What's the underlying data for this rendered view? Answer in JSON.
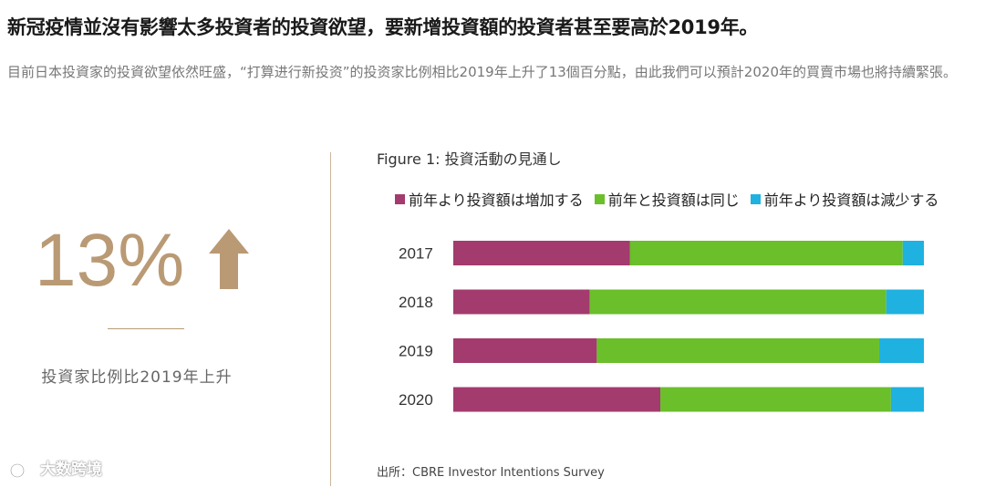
{
  "headline": "新冠疫情並沒有影響太多投資者的投資欲望，要新增投資額的投資者甚至要高於2019年。",
  "intro": "目前日本投資家的投資欲望依然旺盛，“打算进行新投资”的投资家比例相比2019年上升了13個百分點，由此我們可以預計2020年的買賣市場也將持續緊張。",
  "stat": {
    "value": "13%",
    "caption": "投資家比例比2019年上升",
    "color": "#b99a74",
    "icon": "up-arrow-icon"
  },
  "watermark": "大数跨境",
  "chart_data": {
    "type": "bar",
    "orientation": "horizontal",
    "stacked": true,
    "normalized_to": 100,
    "title": "Figure 1: 投資活動の見通し",
    "categories": [
      "2017",
      "2018",
      "2019",
      "2020"
    ],
    "series": [
      {
        "name": "前年より投資額は増加する",
        "color": "#a33b6e",
        "values": [
          37.5,
          29,
          30.5,
          44
        ]
      },
      {
        "name": "前年と投資額は同じ",
        "color": "#6abf2a",
        "values": [
          58,
          63,
          60,
          49
        ]
      },
      {
        "name": "前年より投資額は減少する",
        "color": "#1fb1e0",
        "values": [
          4.5,
          8,
          9.5,
          7
        ]
      }
    ],
    "xlim": [
      0,
      100
    ],
    "grid": false,
    "legend_position": "top",
    "source": "出所：CBRE Investor Intentions Survey"
  }
}
